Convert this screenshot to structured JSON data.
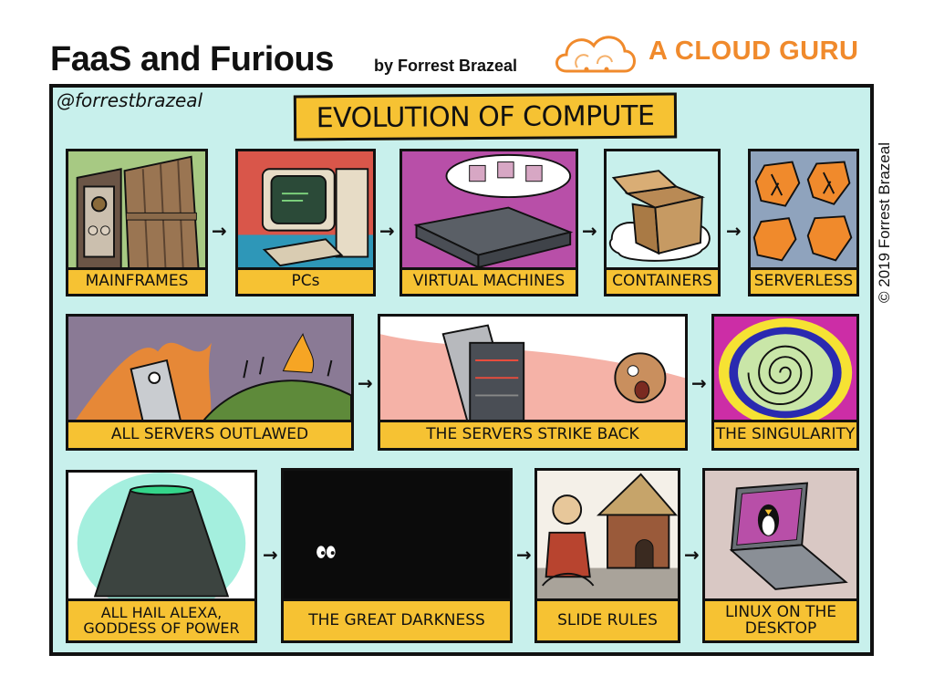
{
  "header": {
    "title": "FaaS and Furious",
    "byline": "by Forrest Brazeal",
    "logo_text": "A CLOUD GURU",
    "copyright": "© 2019 Forrest Brazeal"
  },
  "comic": {
    "handle": "@forrestbrazeal",
    "banner": "EVOLUTION OF COMPUTE",
    "arrow_glyph": "→",
    "panels": [
      {
        "caption": "MAINFRAMES"
      },
      {
        "caption": "PCs"
      },
      {
        "caption": "VIRTUAL MACHINES"
      },
      {
        "caption": "CONTAINERS"
      },
      {
        "caption": "SERVERLESS"
      },
      {
        "caption": "ALL SERVERS OUTLAWED"
      },
      {
        "caption": "THE SERVERS STRIKE BACK"
      },
      {
        "caption": "THE SINGULARITY"
      },
      {
        "caption": "ALL HAIL ALEXA,\nGODDESS OF POWER"
      },
      {
        "caption": "THE GREAT DARKNESS"
      },
      {
        "caption": "SLIDE RULES"
      },
      {
        "caption": "LINUX ON THE\nDESKTOP"
      }
    ]
  },
  "colors": {
    "background": "#c8f0ec",
    "caption": "#f6c233",
    "brand_orange": "#f08a2c"
  }
}
